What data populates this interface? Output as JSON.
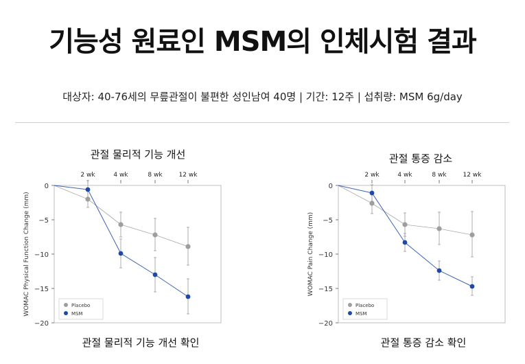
{
  "header": {
    "title": "기능성 원료인 MSM의 인체시험 결과",
    "subtitle": "대상자: 40-76세의 무릎관절이 불편한 성인남여 40명   |   기간: 12주   |   섭취량: MSM 6g/day"
  },
  "colors": {
    "placebo": "#9e9e9e",
    "msm": "#1f49a8",
    "frame": "#bdbdbd"
  },
  "chart_data": [
    {
      "type": "line",
      "title": "관절 물리적 기능 개선",
      "caption": "관절 물리적 기능 개선 확인",
      "ylabel": "WOMAC Physical Function Change (mm)",
      "x_ticks": [
        "2 wk",
        "4 wk",
        "8 wk",
        "12 wk"
      ],
      "y_ticks": [
        0,
        -5,
        -10,
        -15,
        -20
      ],
      "ylim": [
        -20,
        0
      ],
      "legend": "bottom-left",
      "series": [
        {
          "name": "Placebo",
          "color": "#9e9e9e",
          "points": [
            {
              "x": 0,
              "y": 0
            },
            {
              "x": 2,
              "y": -2.0,
              "err_lo": -3.2,
              "err_hi": -0.8
            },
            {
              "x": 4,
              "y": -5.7,
              "err_lo": -7.5,
              "err_hi": -3.9
            },
            {
              "x": 8,
              "y": -7.2,
              "err_lo": -9.5,
              "err_hi": -4.8
            },
            {
              "x": 12,
              "y": -8.9,
              "err_lo": -11.6,
              "err_hi": -6.1
            }
          ]
        },
        {
          "name": "MSM",
          "color": "#1f49a8",
          "points": [
            {
              "x": 0,
              "y": 0
            },
            {
              "x": 2,
              "y": -0.6,
              "err_lo": -1.8,
              "err_hi": 0.7
            },
            {
              "x": 4,
              "y": -9.9,
              "err_lo": -12.0,
              "err_hi": -7.8
            },
            {
              "x": 8,
              "y": -13.0,
              "err_lo": -15.5,
              "err_hi": -10.5
            },
            {
              "x": 12,
              "y": -16.2,
              "err_lo": -18.7,
              "err_hi": -13.6
            }
          ]
        }
      ]
    },
    {
      "type": "line",
      "title": "관절 통증 감소",
      "caption": "관절 통증 감소 확인",
      "ylabel": "WOMAC Pain Change (mm)",
      "x_ticks": [
        "2 wk",
        "4 wk",
        "8 wk",
        "12 wk"
      ],
      "y_ticks": [
        0,
        -5,
        -10,
        -15,
        -20
      ],
      "ylim": [
        -20,
        0
      ],
      "legend": "bottom-left",
      "series": [
        {
          "name": "Placebo",
          "color": "#9e9e9e",
          "points": [
            {
              "x": 0,
              "y": 0
            },
            {
              "x": 2,
              "y": -2.6,
              "err_lo": -4.1,
              "err_hi": -1.1
            },
            {
              "x": 4,
              "y": -5.7,
              "err_lo": -7.4,
              "err_hi": -4.0
            },
            {
              "x": 8,
              "y": -6.3,
              "err_lo": -8.6,
              "err_hi": -3.9
            },
            {
              "x": 12,
              "y": -7.2,
              "err_lo": -10.4,
              "err_hi": -3.8
            }
          ]
        },
        {
          "name": "MSM",
          "color": "#1f49a8",
          "points": [
            {
              "x": 0,
              "y": 0
            },
            {
              "x": 2,
              "y": -1.1,
              "err_lo": -2.3,
              "err_hi": 0.1
            },
            {
              "x": 4,
              "y": -8.3,
              "err_lo": -9.6,
              "err_hi": -7.0
            },
            {
              "x": 8,
              "y": -12.4,
              "err_lo": -13.8,
              "err_hi": -11.0
            },
            {
              "x": 12,
              "y": -14.7,
              "err_lo": -16.0,
              "err_hi": -13.3
            }
          ]
        }
      ]
    }
  ]
}
